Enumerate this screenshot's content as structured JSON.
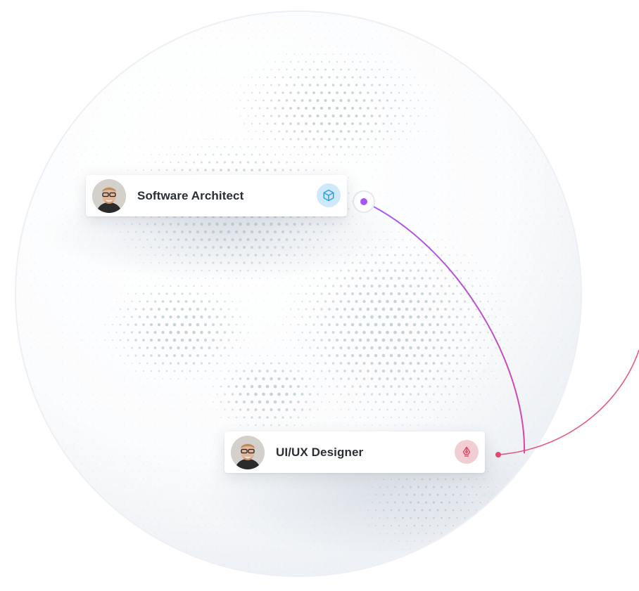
{
  "cards": [
    {
      "title": "Software Architect",
      "icon": "cube-icon",
      "icon_bg": "#cfe9fb",
      "icon_color": "#2f9ee0"
    },
    {
      "title": "UI/UX Designer",
      "icon": "pen-nib-icon",
      "icon_bg": "#f3cdd4",
      "icon_color": "#d9465f"
    }
  ],
  "colors": {
    "dot": "#b9c6cc",
    "arc_top": "#a855f7",
    "arc_bottom": "#e04b72"
  }
}
